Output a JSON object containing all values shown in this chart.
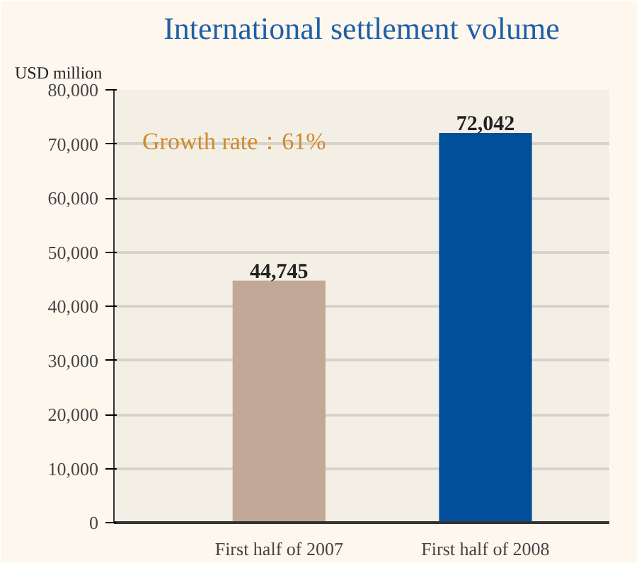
{
  "chart_data": {
    "type": "bar",
    "title": "International settlement volume",
    "ylabel": "USD million",
    "categories": [
      "First half of 2007",
      "First half of 2008"
    ],
    "values": [
      44745,
      72042
    ],
    "value_labels": [
      "44,745",
      "72,042"
    ],
    "colors": [
      "#c2a896",
      "#004f9a"
    ],
    "ylim": [
      0,
      80000
    ],
    "yticks": [
      0,
      {
        "value": 10000,
        "label": "10,000"
      },
      {
        "value": 20000,
        "label": "20,000"
      },
      {
        "value": 30000,
        "label": "30,000"
      },
      {
        "value": 40000,
        "label": "40,000"
      },
      {
        "value": 50000,
        "label": "50,000"
      },
      {
        "value": 60000,
        "label": "60,000"
      },
      {
        "value": 70000,
        "label": "70,000"
      },
      {
        "value": 80000,
        "label": "80,000"
      }
    ],
    "grid": "y",
    "annotations": [
      "Growth rate：61%"
    ]
  }
}
